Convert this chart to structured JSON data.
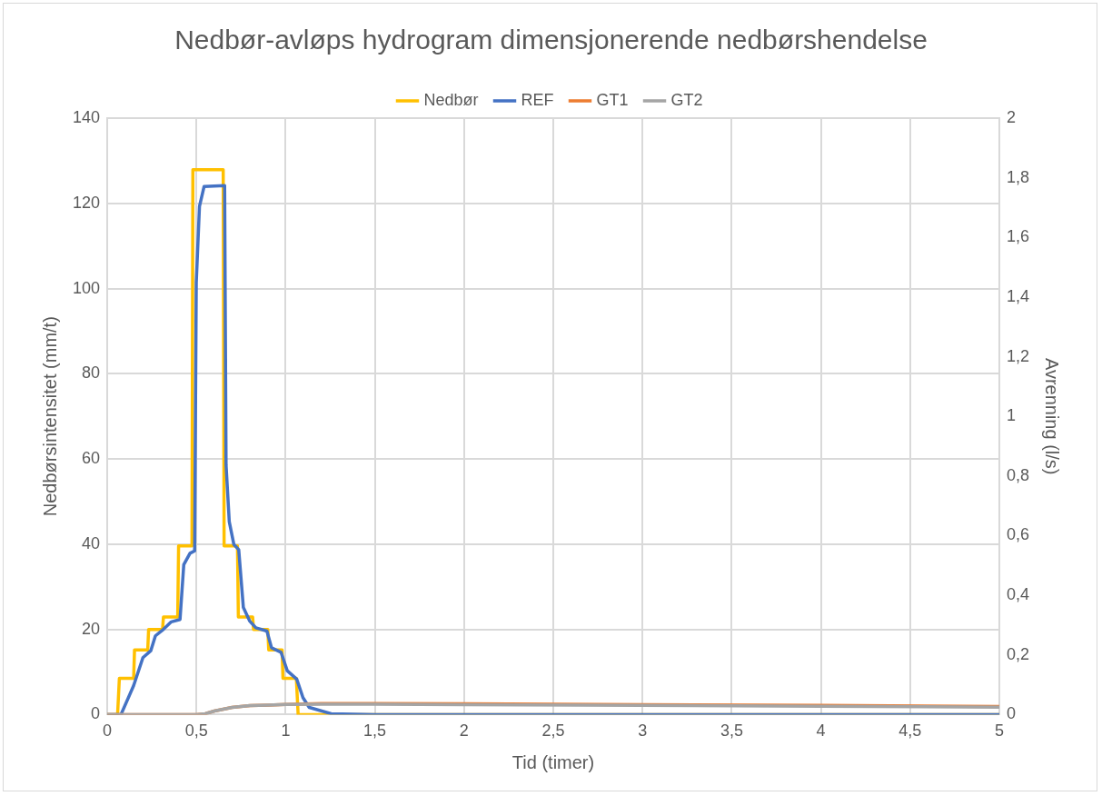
{
  "chart_data": {
    "type": "line",
    "title": "Nedbør-avløps hydrogram dimensjonerende nedbørshendelse",
    "xlabel": "Tid (timer)",
    "ylabel": "Nedbørsintensitet (mm/t)",
    "y2label": "Avrenning (l/s)",
    "xlim": [
      0,
      5
    ],
    "xticks": [
      0,
      {
        "value": 0.5,
        "label": "0,5"
      },
      1,
      {
        "value": 1.5,
        "label": "1,5"
      },
      2,
      {
        "value": 2.5,
        "label": "2,5"
      },
      3,
      {
        "value": 3.5,
        "label": "3,5"
      },
      4,
      {
        "value": 4.5,
        "label": "4,5"
      },
      5
    ],
    "ylim": [
      0,
      140
    ],
    "yticks": [
      0,
      20,
      40,
      60,
      80,
      100,
      120,
      140
    ],
    "y2lim": [
      0,
      2
    ],
    "y2ticks": [
      0,
      {
        "value": 0.2,
        "label": "0,2"
      },
      {
        "value": 0.4,
        "label": "0,4"
      },
      {
        "value": 0.6,
        "label": "0,6"
      },
      {
        "value": 0.8,
        "label": "0,8"
      },
      1,
      {
        "value": 1.2,
        "label": "1,2"
      },
      {
        "value": 1.4,
        "label": "1,4"
      },
      {
        "value": 1.6,
        "label": "1,6"
      },
      {
        "value": 1.8,
        "label": "1,8"
      },
      2
    ],
    "grid": true,
    "legend": "top",
    "marker": "none",
    "line_style": "solid",
    "series": [
      {
        "name": "Nedbør",
        "color": "#ffc000",
        "x": [
          0,
          0.058,
          0.068,
          0.148,
          0.153,
          0.227,
          0.232,
          0.31,
          0.315,
          0.395,
          0.4,
          0.475,
          0.48,
          0.65,
          0.655,
          0.73,
          0.735,
          0.815,
          0.82,
          0.9,
          0.905,
          0.98,
          0.985,
          1.06,
          1.07,
          5
        ],
        "values": [
          0,
          0,
          8.5,
          8.5,
          15.2,
          15.2,
          20,
          20,
          22.9,
          22.9,
          39.6,
          39.6,
          127.9,
          127.9,
          39.6,
          39.6,
          22.9,
          22.9,
          20,
          20,
          15.2,
          15.2,
          8.5,
          8.5,
          0,
          0
        ]
      },
      {
        "name": "REF",
        "color": "#4472c4",
        "axis": "y2",
        "x": [
          0,
          0.077,
          0.148,
          0.2,
          0.244,
          0.27,
          0.315,
          0.359,
          0.408,
          0.429,
          0.464,
          0.49,
          0.499,
          0.517,
          0.543,
          0.658,
          0.666,
          0.684,
          0.71,
          0.737,
          0.763,
          0.798,
          0.833,
          0.895,
          0.921,
          0.974,
          1.009,
          1.062,
          1.097,
          1.132,
          1.255,
          1.5,
          5
        ],
        "values": [
          0,
          0,
          0.097,
          0.191,
          0.214,
          0.264,
          0.286,
          0.311,
          0.319,
          0.503,
          0.541,
          0.549,
          1.449,
          1.704,
          1.771,
          1.774,
          0.837,
          0.647,
          0.57,
          0.553,
          0.359,
          0.314,
          0.291,
          0.28,
          0.224,
          0.209,
          0.147,
          0.119,
          0.057,
          0.024,
          0.003,
          0,
          0
        ]
      },
      {
        "name": "GT1",
        "color": "#ed7d31",
        "axis": "y2",
        "x": [
          0,
          0.5,
          0.55,
          0.6,
          0.7,
          0.8,
          0.9,
          1,
          1.2,
          1.5,
          2,
          3,
          4,
          5
        ],
        "values": [
          0,
          0,
          0.003,
          0.012,
          0.024,
          0.03,
          0.032,
          0.034,
          0.037,
          0.037,
          0.036,
          0.033,
          0.031,
          0.027
        ]
      },
      {
        "name": "GT2",
        "color": "#a5a5a5",
        "axis": "y2",
        "x": [
          0,
          0.5,
          0.55,
          0.6,
          0.7,
          0.8,
          0.9,
          1,
          1.2,
          1.5,
          2,
          3,
          4,
          5
        ],
        "values": [
          0,
          0,
          0.003,
          0.012,
          0.024,
          0.03,
          0.032,
          0.034,
          0.035,
          0.035,
          0.033,
          0.031,
          0.028,
          0.025
        ]
      }
    ]
  }
}
